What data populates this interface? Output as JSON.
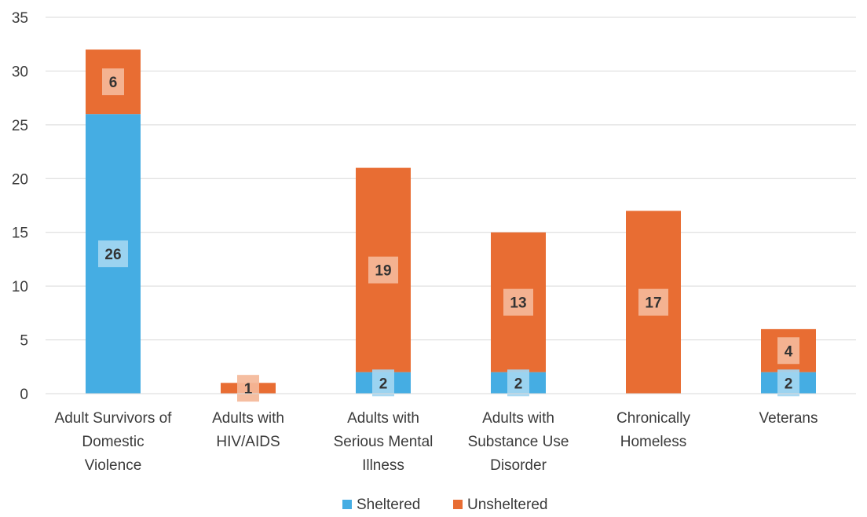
{
  "chart_data": {
    "type": "bar",
    "stacked": true,
    "categories": [
      [
        "Adult Survivors of",
        "Domestic",
        "Violence"
      ],
      [
        "Adults with",
        "HIV/AIDS"
      ],
      [
        "Adults with",
        "Serious Mental",
        "Illness"
      ],
      [
        "Adults with",
        "Substance Use",
        "Disorder"
      ],
      [
        "Chronically",
        "Homeless"
      ],
      [
        "Veterans"
      ]
    ],
    "series": [
      {
        "name": "Sheltered",
        "color": "#45ade3",
        "label_bg": "#a3d6f1",
        "values": [
          26,
          0,
          2,
          2,
          0,
          2
        ]
      },
      {
        "name": "Unsheltered",
        "color": "#e86d33",
        "label_bg": "#f4b899",
        "values": [
          6,
          1,
          19,
          13,
          17,
          4
        ]
      }
    ],
    "ylim": [
      0,
      35
    ],
    "yticks": [
      0,
      5,
      10,
      15,
      20,
      25,
      30,
      35
    ],
    "grid": true,
    "legend": "bottom",
    "title": "",
    "xlabel": "",
    "ylabel": ""
  }
}
